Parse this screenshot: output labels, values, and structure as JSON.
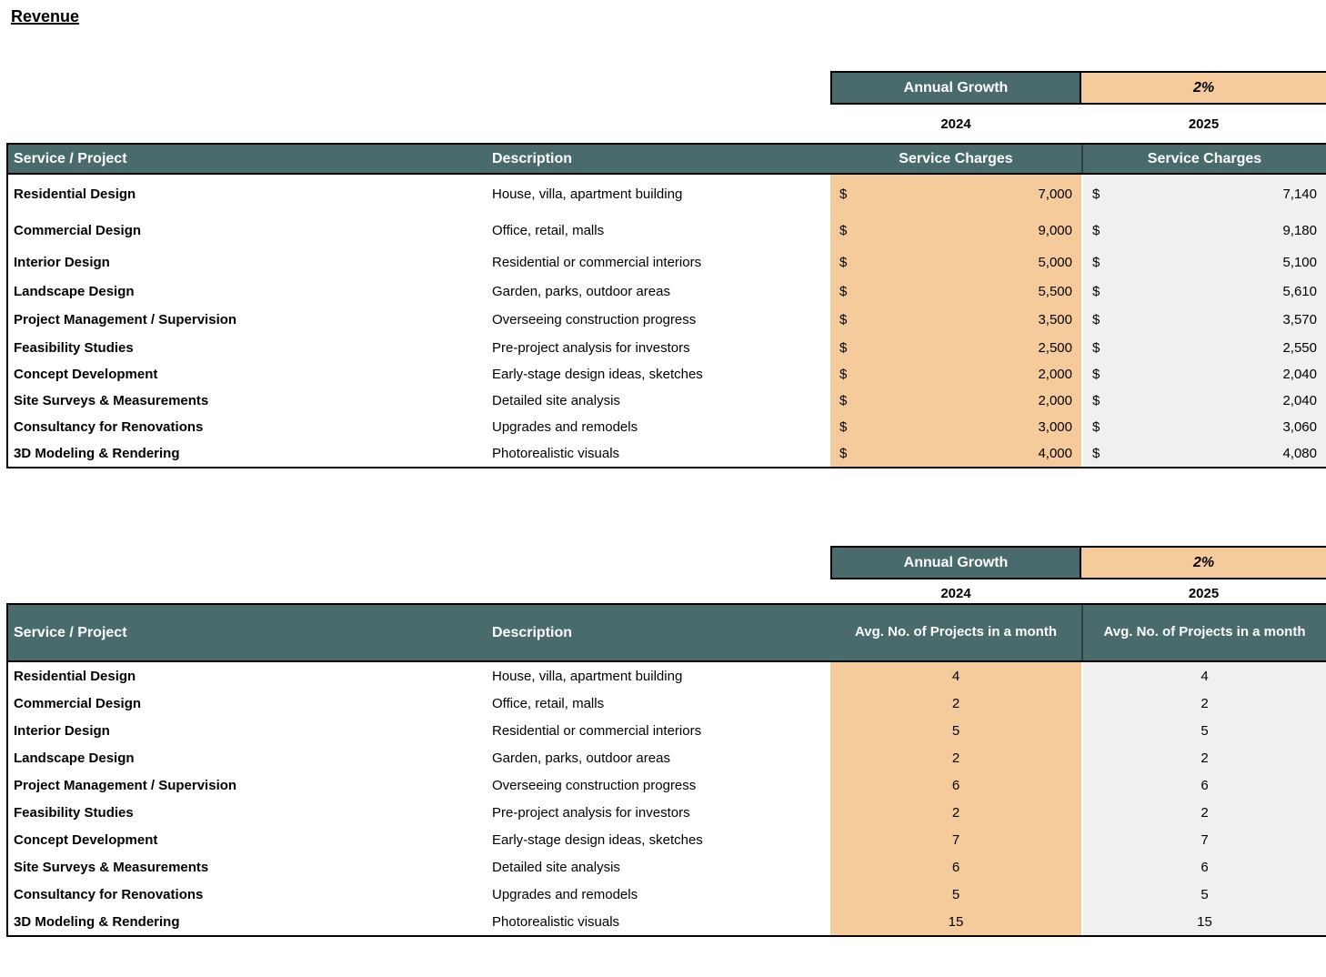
{
  "title": "Revenue",
  "colors": {
    "header_teal": "#4A6B6C",
    "input_orange": "#F6CB9B",
    "computed_gray": "#F0F0F0"
  },
  "section1": {
    "growth_label": "Annual Growth",
    "growth_value": "2%",
    "year_left": "2024",
    "year_right": "2025",
    "currency_symbol": "$",
    "headers": {
      "service": "Service / Project",
      "description": "Description",
      "left": "Service Charges",
      "right": "Service Charges"
    },
    "rows": [
      {
        "service": "Residential Design",
        "description": "House, villa, apartment building",
        "left": "7,000",
        "right": "7,140"
      },
      {
        "service": "Commercial Design",
        "description": "Office, retail, malls",
        "left": "9,000",
        "right": "9,180"
      },
      {
        "service": "Interior Design",
        "description": "Residential or commercial interiors",
        "left": "5,000",
        "right": "5,100"
      },
      {
        "service": "Landscape Design",
        "description": "Garden, parks, outdoor areas",
        "left": "5,500",
        "right": "5,610"
      },
      {
        "service": "Project Management / Supervision",
        "description": "Overseeing construction progress",
        "left": "3,500",
        "right": "3,570"
      },
      {
        "service": "Feasibility Studies",
        "description": "Pre-project analysis for investors",
        "left": "2,500",
        "right": "2,550"
      },
      {
        "service": "Concept Development",
        "description": "Early-stage design ideas, sketches",
        "left": "2,000",
        "right": "2,040"
      },
      {
        "service": "Site Surveys & Measurements",
        "description": "Detailed site analysis",
        "left": "2,000",
        "right": "2,040"
      },
      {
        "service": "Consultancy for Renovations",
        "description": "Upgrades and remodels",
        "left": "3,000",
        "right": "3,060"
      },
      {
        "service": "3D Modeling & Rendering",
        "description": "Photorealistic visuals",
        "left": "4,000",
        "right": "4,080"
      }
    ]
  },
  "section2": {
    "growth_label": "Annual Growth",
    "growth_value": "2%",
    "year_left": "2024",
    "year_right": "2025",
    "headers": {
      "service": "Service / Project",
      "description": "Description",
      "left": "Avg. No. of Projects in a month",
      "right": "Avg. No. of Projects in a month"
    },
    "rows": [
      {
        "service": "Residential Design",
        "description": "House, villa, apartment building",
        "left": "4",
        "right": "4"
      },
      {
        "service": "Commercial Design",
        "description": "Office, retail, malls",
        "left": "2",
        "right": "2"
      },
      {
        "service": "Interior Design",
        "description": "Residential or commercial interiors",
        "left": "5",
        "right": "5"
      },
      {
        "service": "Landscape Design",
        "description": "Garden, parks, outdoor areas",
        "left": "2",
        "right": "2"
      },
      {
        "service": "Project Management / Supervision",
        "description": "Overseeing construction progress",
        "left": "6",
        "right": "6"
      },
      {
        "service": "Feasibility Studies",
        "description": "Pre-project analysis for investors",
        "left": "2",
        "right": "2"
      },
      {
        "service": "Concept Development",
        "description": "Early-stage design ideas, sketches",
        "left": "7",
        "right": "7"
      },
      {
        "service": "Site Surveys & Measurements",
        "description": "Detailed site analysis",
        "left": "6",
        "right": "6"
      },
      {
        "service": "Consultancy for Renovations",
        "description": "Upgrades and remodels",
        "left": "5",
        "right": "5"
      },
      {
        "service": "3D Modeling & Rendering",
        "description": "Photorealistic visuals",
        "left": "15",
        "right": "15"
      }
    ]
  }
}
